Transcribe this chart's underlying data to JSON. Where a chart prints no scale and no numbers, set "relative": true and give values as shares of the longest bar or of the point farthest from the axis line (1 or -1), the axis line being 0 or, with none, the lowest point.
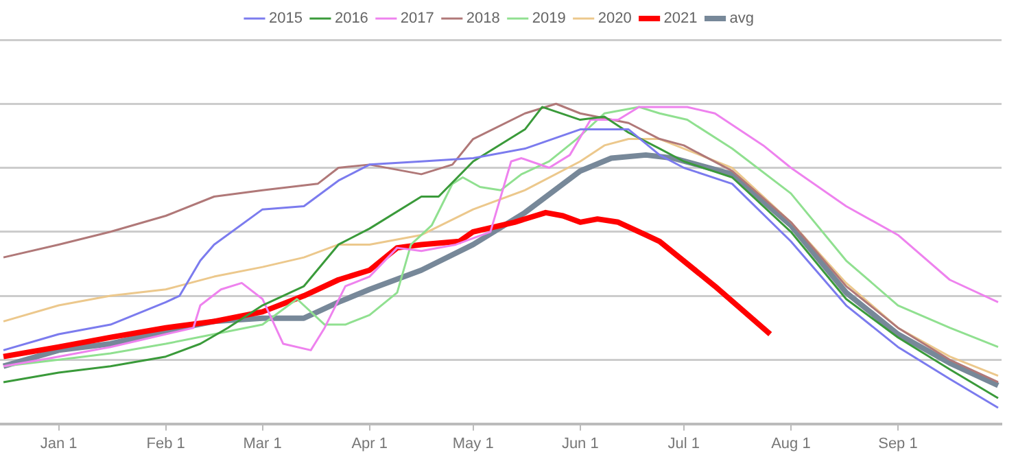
{
  "chart_data": {
    "type": "line",
    "relative": true,
    "legend": "top",
    "grid": "y",
    "marker": "none",
    "line_style": "solid",
    "xlim": [
      "2020-12-15",
      "2021-10-01"
    ],
    "xticks": [
      {
        "value": "2021-01-01",
        "label": "Jan 1"
      },
      {
        "value": "2021-02-01",
        "label": "Feb 1"
      },
      {
        "value": "2021-03-01",
        "label": "Mar 1"
      },
      {
        "value": "2021-04-01",
        "label": "Apr 1"
      },
      {
        "value": "2021-05-01",
        "label": "May 1"
      },
      {
        "value": "2021-06-01",
        "label": "Jun 1"
      },
      {
        "value": "2021-07-01",
        "label": "Jul 1"
      },
      {
        "value": "2021-08-01",
        "label": "Aug 1"
      },
      {
        "value": "2021-09-01",
        "label": "Sep 1"
      }
    ],
    "series": [
      {
        "name": "2015",
        "color": "#7b7bee",
        "x": [
          "2020-12-16",
          "2021-01-01",
          "2021-01-16",
          "2021-02-01",
          "2021-02-05",
          "2021-02-11",
          "2021-02-15",
          "2021-03-01",
          "2021-03-13",
          "2021-03-23",
          "2021-04-01",
          "2021-04-16",
          "2021-05-01",
          "2021-05-16",
          "2021-06-01",
          "2021-06-15",
          "2021-06-24",
          "2021-07-01",
          "2021-07-15",
          "2021-08-01",
          "2021-08-17",
          "2021-09-01",
          "2021-09-16",
          "2021-09-30"
        ],
        "values": [
          0.23,
          0.28,
          0.31,
          0.38,
          0.4,
          0.51,
          0.56,
          0.67,
          0.68,
          0.76,
          0.81,
          0.82,
          0.83,
          0.86,
          0.92,
          0.92,
          0.84,
          0.8,
          0.75,
          0.57,
          0.37,
          0.24,
          0.14,
          0.05
        ]
      },
      {
        "name": "2016",
        "color": "#3a9a3a",
        "x": [
          "2020-12-16",
          "2021-01-01",
          "2021-01-16",
          "2021-02-01",
          "2021-02-11",
          "2021-02-19",
          "2021-03-01",
          "2021-03-13",
          "2021-03-23",
          "2021-04-01",
          "2021-04-16",
          "2021-04-21",
          "2021-05-01",
          "2021-05-16",
          "2021-05-21",
          "2021-06-01",
          "2021-06-08",
          "2021-06-15",
          "2021-06-24",
          "2021-07-01",
          "2021-07-15",
          "2021-08-01",
          "2021-08-17",
          "2021-09-01",
          "2021-09-16",
          "2021-09-30"
        ],
        "values": [
          0.13,
          0.16,
          0.18,
          0.21,
          0.25,
          0.3,
          0.37,
          0.43,
          0.56,
          0.61,
          0.71,
          0.71,
          0.82,
          0.92,
          0.99,
          0.95,
          0.96,
          0.91,
          0.86,
          0.82,
          0.77,
          0.6,
          0.39,
          0.27,
          0.17,
          0.08
        ]
      },
      {
        "name": "2017",
        "color": "#ee82ee",
        "x": [
          "2020-12-16",
          "2021-01-01",
          "2021-01-16",
          "2021-02-01",
          "2021-02-09",
          "2021-02-11",
          "2021-02-17",
          "2021-02-23",
          "2021-03-01",
          "2021-03-07",
          "2021-03-15",
          "2021-03-19",
          "2021-03-25",
          "2021-04-01",
          "2021-04-09",
          "2021-04-16",
          "2021-04-26",
          "2021-05-06",
          "2021-05-12",
          "2021-05-15",
          "2021-05-23",
          "2021-05-29",
          "2021-06-04",
          "2021-06-12",
          "2021-06-18",
          "2021-07-02",
          "2021-07-10",
          "2021-07-24",
          "2021-08-01",
          "2021-08-17",
          "2021-09-01",
          "2021-09-16",
          "2021-09-30"
        ],
        "values": [
          0.18,
          0.21,
          0.24,
          0.28,
          0.3,
          0.37,
          0.42,
          0.44,
          0.39,
          0.25,
          0.23,
          0.3,
          0.43,
          0.46,
          0.55,
          0.54,
          0.56,
          0.6,
          0.82,
          0.83,
          0.8,
          0.84,
          0.95,
          0.95,
          0.99,
          0.99,
          0.97,
          0.87,
          0.8,
          0.68,
          0.59,
          0.45,
          0.38
        ]
      },
      {
        "name": "2018",
        "color": "#b07878",
        "x": [
          "2020-12-16",
          "2021-01-01",
          "2021-01-16",
          "2021-02-01",
          "2021-02-15",
          "2021-03-01",
          "2021-03-17",
          "2021-03-23",
          "2021-04-01",
          "2021-04-16",
          "2021-04-25",
          "2021-05-01",
          "2021-05-16",
          "2021-05-25",
          "2021-06-01",
          "2021-06-15",
          "2021-06-24",
          "2021-07-01",
          "2021-07-15",
          "2021-08-01",
          "2021-08-17",
          "2021-09-01",
          "2021-09-16",
          "2021-09-30"
        ],
        "values": [
          0.52,
          0.56,
          0.6,
          0.65,
          0.71,
          0.73,
          0.75,
          0.8,
          0.81,
          0.78,
          0.81,
          0.89,
          0.97,
          1,
          0.97,
          0.94,
          0.89,
          0.87,
          0.79,
          0.63,
          0.43,
          0.3,
          0.2,
          0.13
        ]
      },
      {
        "name": "2019",
        "color": "#90e090",
        "x": [
          "2020-12-16",
          "2021-01-01",
          "2021-01-16",
          "2021-02-01",
          "2021-02-15",
          "2021-03-01",
          "2021-03-11",
          "2021-03-19",
          "2021-03-25",
          "2021-04-01",
          "2021-04-09",
          "2021-04-13",
          "2021-04-19",
          "2021-04-25",
          "2021-04-28",
          "2021-05-03",
          "2021-05-09",
          "2021-05-15",
          "2021-05-23",
          "2021-05-31",
          "2021-06-08",
          "2021-06-18",
          "2021-06-24",
          "2021-07-02",
          "2021-07-15",
          "2021-08-01",
          "2021-08-17",
          "2021-09-01",
          "2021-09-16",
          "2021-09-30"
        ],
        "values": [
          0.18,
          0.2,
          0.22,
          0.25,
          0.28,
          0.31,
          0.39,
          0.31,
          0.31,
          0.34,
          0.41,
          0.56,
          0.62,
          0.75,
          0.77,
          0.74,
          0.73,
          0.78,
          0.82,
          0.89,
          0.97,
          0.99,
          0.97,
          0.95,
          0.86,
          0.72,
          0.51,
          0.37,
          0.3,
          0.24
        ]
      },
      {
        "name": "2020",
        "color": "#ecc88c",
        "x": [
          "2020-12-16",
          "2021-01-01",
          "2021-01-16",
          "2021-02-01",
          "2021-02-15",
          "2021-03-01",
          "2021-03-13",
          "2021-03-23",
          "2021-04-01",
          "2021-04-16",
          "2021-05-01",
          "2021-05-16",
          "2021-06-01",
          "2021-06-08",
          "2021-06-15",
          "2021-06-24",
          "2021-07-01",
          "2021-07-15",
          "2021-08-01",
          "2021-08-17",
          "2021-09-01",
          "2021-09-16",
          "2021-09-30"
        ],
        "values": [
          0.32,
          0.37,
          0.4,
          0.42,
          0.46,
          0.49,
          0.52,
          0.56,
          0.56,
          0.59,
          0.67,
          0.73,
          0.82,
          0.87,
          0.89,
          0.89,
          0.86,
          0.8,
          0.63,
          0.44,
          0.3,
          0.21,
          0.15
        ]
      },
      {
        "name": "2021",
        "color": "#ff0000",
        "x": [
          "2020-12-16",
          "2021-01-01",
          "2021-01-16",
          "2021-02-01",
          "2021-02-15",
          "2021-03-01",
          "2021-03-13",
          "2021-03-23",
          "2021-04-01",
          "2021-04-09",
          "2021-04-16",
          "2021-04-27",
          "2021-05-01",
          "2021-05-13",
          "2021-05-22",
          "2021-05-27",
          "2021-06-01",
          "2021-06-06",
          "2021-06-12",
          "2021-06-20",
          "2021-06-24",
          "2021-07-10",
          "2021-07-26"
        ],
        "values": [
          0.21,
          0.24,
          0.27,
          0.3,
          0.32,
          0.35,
          0.4,
          0.45,
          0.48,
          0.55,
          0.56,
          0.57,
          0.6,
          0.63,
          0.66,
          0.65,
          0.63,
          0.64,
          0.63,
          0.59,
          0.57,
          0.43,
          0.28
        ]
      },
      {
        "name": "avg",
        "color": "#778899",
        "x": [
          "2020-12-16",
          "2021-01-01",
          "2021-01-16",
          "2021-02-01",
          "2021-02-15",
          "2021-03-01",
          "2021-03-13",
          "2021-03-23",
          "2021-04-01",
          "2021-04-16",
          "2021-05-01",
          "2021-05-16",
          "2021-06-01",
          "2021-06-10",
          "2021-06-20",
          "2021-06-28",
          "2021-07-15",
          "2021-08-01",
          "2021-08-17",
          "2021-09-01",
          "2021-09-16",
          "2021-09-30"
        ],
        "values": [
          0.18,
          0.23,
          0.25,
          0.29,
          0.32,
          0.33,
          0.33,
          0.38,
          0.42,
          0.48,
          0.56,
          0.66,
          0.79,
          0.83,
          0.84,
          0.83,
          0.78,
          0.62,
          0.41,
          0.28,
          0.19,
          0.12
        ]
      }
    ]
  }
}
